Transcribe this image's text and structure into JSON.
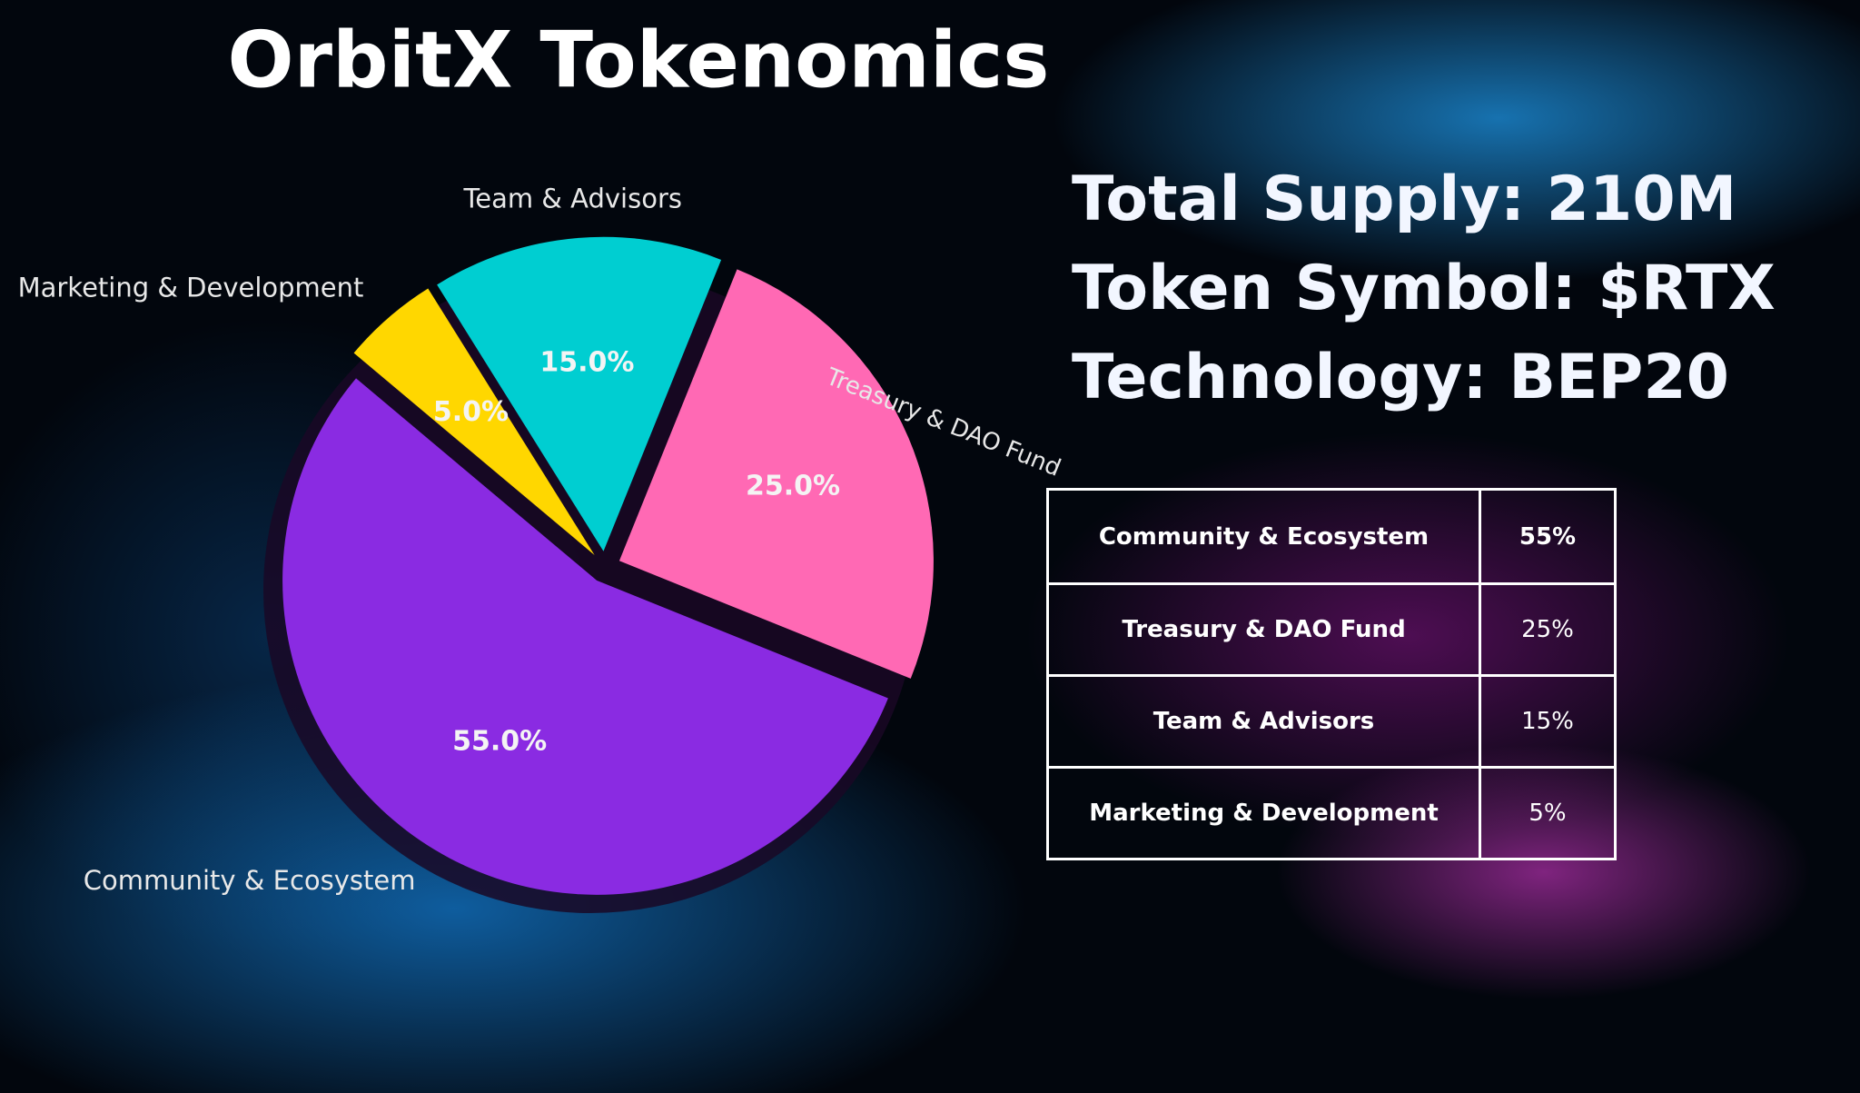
{
  "chart_data": {
    "type": "pie",
    "title": "OrbitX Tokenomics",
    "categories": [
      "Community & Ecosystem",
      "Treasury & DAO Fund",
      "Team & Advisors",
      "Marketing & Development"
    ],
    "values": [
      55,
      25,
      15,
      5
    ],
    "value_labels": [
      "55.0%",
      "25.0%",
      "15.0%",
      "5.0%"
    ],
    "colors": [
      "#8a2be2",
      "#ff69b4",
      "#00ced1",
      "#ffd700"
    ]
  },
  "info": [
    "Total Supply: 210M",
    "Token Symbol: $RTX",
    "Technology: BEP20"
  ],
  "table": {
    "rows": [
      [
        "Community & Ecosystem",
        "55%"
      ],
      [
        "Treasury & DAO Fund",
        "25%"
      ],
      [
        "Team & Advisors",
        "15%"
      ],
      [
        "Marketing & Development",
        "5%"
      ]
    ]
  }
}
